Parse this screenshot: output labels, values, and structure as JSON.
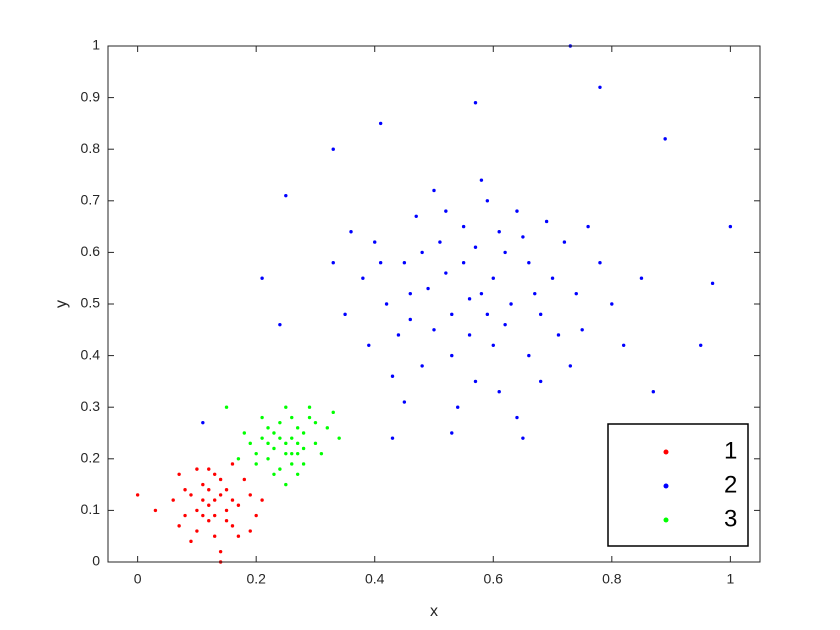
{
  "chart_data": {
    "type": "scatter",
    "xlabel": "x",
    "ylabel": "y",
    "xlim": [
      -0.05,
      1.05
    ],
    "ylim": [
      0,
      1
    ],
    "xticks": [
      0,
      0.2,
      0.4,
      0.6,
      0.8,
      1
    ],
    "yticks": [
      0,
      0.1,
      0.2,
      0.3,
      0.4,
      0.5,
      0.6,
      0.7,
      0.8,
      0.9,
      1
    ],
    "grid": false,
    "legend": "southeast",
    "series": [
      {
        "name": "1",
        "color": "#ff0000",
        "x": [
          0.13,
          0.1,
          0.15,
          0.12,
          0.17,
          0.09,
          0.14,
          0.11,
          0.16,
          0.13,
          0.08,
          0.19,
          0.12,
          0.06,
          0.15,
          0.1,
          0.18,
          0.14,
          0.07,
          0.2,
          0.11,
          0.16,
          0.03,
          0.13,
          0.09,
          0.17,
          0.12,
          0.21,
          0.08,
          0.14,
          0.1,
          0.15,
          0.0,
          0.19,
          0.11,
          0.13,
          0.16,
          0.07,
          0.14,
          0.12
        ],
        "values": [
          0.12,
          0.1,
          0.14,
          0.08,
          0.11,
          0.13,
          0.16,
          0.15,
          0.07,
          0.05,
          0.09,
          0.13,
          0.18,
          0.12,
          0.1,
          0.06,
          0.16,
          0.02,
          0.17,
          0.09,
          0.12,
          0.19,
          0.1,
          0.09,
          0.04,
          0.05,
          0.14,
          0.12,
          0.14,
          0.13,
          0.18,
          0.08,
          0.13,
          0.06,
          0.09,
          0.17,
          0.12,
          0.07,
          0.0,
          0.11
        ]
      },
      {
        "name": "2",
        "color": "#0000ff",
        "x": [
          0.58,
          0.5,
          0.62,
          0.45,
          0.68,
          0.55,
          0.7,
          0.48,
          0.6,
          0.52,
          0.65,
          0.42,
          0.57,
          0.75,
          0.47,
          0.63,
          0.53,
          0.66,
          0.4,
          0.59,
          0.72,
          0.44,
          0.55,
          0.61,
          0.38,
          0.78,
          0.5,
          0.67,
          0.46,
          0.56,
          0.64,
          0.35,
          0.73,
          0.51,
          0.6,
          0.43,
          0.69,
          0.54,
          0.8,
          0.48,
          0.62,
          0.39,
          0.58,
          0.71,
          0.45,
          0.66,
          0.53,
          0.76,
          0.36,
          0.59,
          0.82,
          0.49,
          0.64,
          0.41,
          0.57,
          0.74,
          0.52,
          0.68,
          0.33,
          0.85,
          0.46,
          0.61,
          0.56,
          0.73,
          0.78,
          0.57,
          0.41,
          0.89,
          1.0,
          0.97,
          0.95,
          0.21,
          0.24,
          0.25,
          0.11,
          0.43,
          0.53,
          0.65,
          0.87,
          0.33
        ],
        "values": [
          0.52,
          0.45,
          0.6,
          0.58,
          0.48,
          0.65,
          0.55,
          0.38,
          0.42,
          0.56,
          0.63,
          0.5,
          0.35,
          0.45,
          0.67,
          0.5,
          0.48,
          0.4,
          0.62,
          0.7,
          0.62,
          0.44,
          0.58,
          0.33,
          0.55,
          0.58,
          0.72,
          0.52,
          0.52,
          0.44,
          0.68,
          0.48,
          0.38,
          0.62,
          0.55,
          0.36,
          0.66,
          0.3,
          0.5,
          0.6,
          0.46,
          0.42,
          0.74,
          0.44,
          0.31,
          0.58,
          0.4,
          0.65,
          0.64,
          0.48,
          0.42,
          0.53,
          0.28,
          0.58,
          0.61,
          0.52,
          0.68,
          0.35,
          0.58,
          0.55,
          0.47,
          0.64,
          0.51,
          1.0,
          0.92,
          0.89,
          0.85,
          0.82,
          0.65,
          0.54,
          0.42,
          0.55,
          0.46,
          0.71,
          0.27,
          0.24,
          0.25,
          0.24,
          0.33,
          0.8
        ]
      },
      {
        "name": "3",
        "color": "#00ff00",
        "x": [
          0.25,
          0.22,
          0.28,
          0.24,
          0.27,
          0.21,
          0.26,
          0.29,
          0.23,
          0.3,
          0.2,
          0.25,
          0.27,
          0.24,
          0.32,
          0.19,
          0.26,
          0.22,
          0.28,
          0.31,
          0.23,
          0.25,
          0.18,
          0.29,
          0.21,
          0.27,
          0.34,
          0.24,
          0.26,
          0.2,
          0.3,
          0.22,
          0.15,
          0.28,
          0.25,
          0.33,
          0.23,
          0.27,
          0.17,
          0.26
        ],
        "values": [
          0.23,
          0.2,
          0.25,
          0.27,
          0.21,
          0.24,
          0.19,
          0.28,
          0.22,
          0.23,
          0.21,
          0.3,
          0.26,
          0.18,
          0.26,
          0.23,
          0.24,
          0.26,
          0.19,
          0.21,
          0.17,
          0.21,
          0.25,
          0.3,
          0.28,
          0.17,
          0.24,
          0.24,
          0.28,
          0.19,
          0.27,
          0.23,
          0.3,
          0.22,
          0.15,
          0.29,
          0.25,
          0.23,
          0.2,
          0.21
        ]
      }
    ]
  }
}
